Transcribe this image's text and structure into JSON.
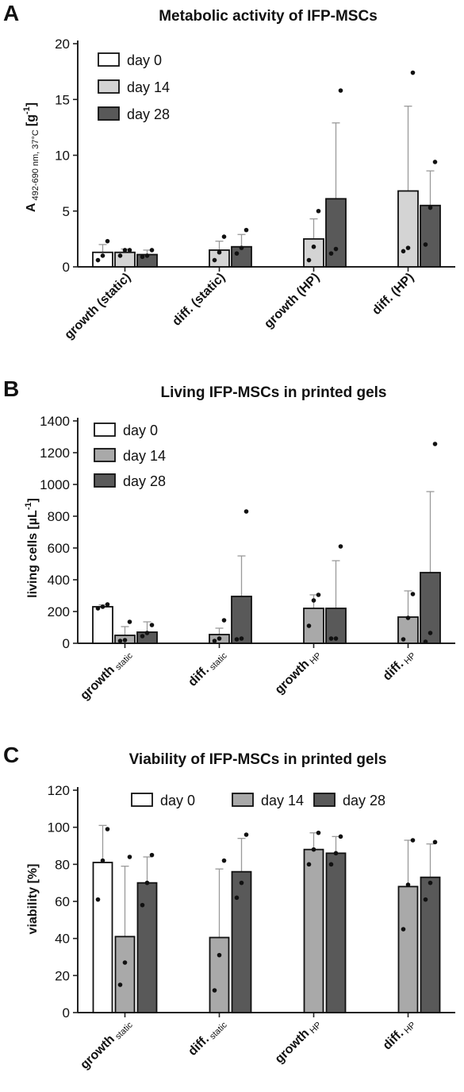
{
  "colors": {
    "day0": "#ffffff",
    "day14_A": "#d4d4d4",
    "day14_BC": "#a9a9a9",
    "day28": "#595959"
  },
  "chart_data": [
    {
      "id": "A",
      "panel_letter": "A",
      "type": "bar",
      "title": "Metabolic activity of IFP-MSCs",
      "ylabel_main": "A",
      "ylabel_sub": "492-690 nm, 37°C",
      "ylabel_unit": "[g",
      "ylabel_sup": "-1",
      "ylabel_end": "]",
      "ylim": [
        0,
        20
      ],
      "yticks": [
        0,
        5,
        10,
        15,
        20
      ],
      "legend_position": "top-left",
      "categories": [
        {
          "main": "growth (static)",
          "sub": ""
        },
        {
          "main": "diff. (static)",
          "sub": ""
        },
        {
          "main": "growth (HP)",
          "sub": ""
        },
        {
          "main": "diff. (HP)",
          "sub": ""
        }
      ],
      "series": [
        {
          "name": "day 0",
          "color_key": "day0",
          "values": [
            1.3,
            null,
            null,
            null
          ],
          "errors": [
            0.7,
            null,
            null,
            null
          ],
          "points": [
            [
              0.6,
              1.0,
              2.3
            ],
            [],
            [],
            []
          ]
        },
        {
          "name": "day 14",
          "color_key": "day14_A",
          "values": [
            1.3,
            1.5,
            2.5,
            6.8
          ],
          "errors": [
            0.3,
            0.8,
            1.8,
            7.6
          ],
          "points": [
            [
              1.0,
              1.5,
              1.5
            ],
            [
              0.6,
              1.3,
              2.7
            ],
            [
              0.6,
              1.8,
              5.0
            ],
            [
              1.4,
              1.7,
              17.4
            ]
          ]
        },
        {
          "name": "day 28",
          "color_key": "day28",
          "values": [
            1.1,
            1.8,
            6.1,
            5.5
          ],
          "errors": [
            0.4,
            1.1,
            6.8,
            3.1
          ],
          "points": [
            [
              0.9,
              1.0,
              1.5
            ],
            [
              1.2,
              1.7,
              3.3
            ],
            [
              1.2,
              1.6,
              15.8
            ],
            [
              2.0,
              5.3,
              9.4
            ]
          ]
        }
      ]
    },
    {
      "id": "B",
      "panel_letter": "B",
      "type": "bar",
      "title": "Living IFP-MSCs in printed gels",
      "ylabel_main": "living cells [µL",
      "ylabel_sub": "",
      "ylabel_unit": "",
      "ylabel_sup": "-1",
      "ylabel_end": "]",
      "ylim": [
        0,
        1400
      ],
      "yticks": [
        0,
        200,
        400,
        600,
        800,
        1000,
        1200,
        1400
      ],
      "legend_position": "top-left",
      "categories": [
        {
          "main": "growth",
          "sub": "static"
        },
        {
          "main": "diff.",
          "sub": "static"
        },
        {
          "main": "growth",
          "sub": "HP"
        },
        {
          "main": "diff.",
          "sub": "HP"
        }
      ],
      "series": [
        {
          "name": "day 0",
          "color_key": "day0",
          "values": [
            230,
            null,
            null,
            null
          ],
          "errors": [
            12,
            null,
            null,
            null
          ],
          "points": [
            [
              220,
              230,
              245
            ],
            [],
            [],
            []
          ]
        },
        {
          "name": "day 14",
          "color_key": "day14_BC",
          "values": [
            50,
            55,
            220,
            165
          ],
          "errors": [
            55,
            40,
            85,
            165
          ],
          "points": [
            [
              15,
              20,
              135
            ],
            [
              15,
              30,
              145
            ],
            [
              110,
              270,
              305
            ],
            [
              25,
              160,
              310
            ]
          ]
        },
        {
          "name": "day 28",
          "color_key": "day28",
          "values": [
            70,
            295,
            220,
            445
          ],
          "errors": [
            65,
            255,
            300,
            510
          ],
          "points": [
            [
              45,
              65,
              115
            ],
            [
              25,
              30,
              830
            ],
            [
              30,
              30,
              610
            ],
            [
              10,
              65,
              1255
            ]
          ]
        }
      ]
    },
    {
      "id": "C",
      "panel_letter": "C",
      "type": "bar",
      "title": "Viability of IFP-MSCs in printed gels",
      "ylabel_main": "viability [%]",
      "ylabel_sub": "",
      "ylabel_unit": "",
      "ylabel_sup": "",
      "ylabel_end": "",
      "ylim": [
        0,
        120
      ],
      "yticks": [
        0,
        20,
        40,
        60,
        80,
        100,
        120
      ],
      "legend_position": "top",
      "categories": [
        {
          "main": "growth",
          "sub": "static"
        },
        {
          "main": "diff.",
          "sub": "static"
        },
        {
          "main": "growth",
          "sub": "HP"
        },
        {
          "main": "diff.",
          "sub": "HP"
        }
      ],
      "series": [
        {
          "name": "day 0",
          "color_key": "day0",
          "values": [
            81,
            null,
            null,
            null
          ],
          "errors": [
            20,
            null,
            null,
            null
          ],
          "points": [
            [
              61,
              82,
              99
            ],
            [],
            [],
            []
          ]
        },
        {
          "name": "day 14",
          "color_key": "day14_BC",
          "values": [
            41,
            40.5,
            88,
            68
          ],
          "errors": [
            38,
            37,
            9,
            25
          ],
          "points": [
            [
              15,
              27,
              84
            ],
            [
              12,
              31,
              82
            ],
            [
              80,
              88,
              97
            ],
            [
              45,
              69,
              93
            ]
          ]
        },
        {
          "name": "day 28",
          "color_key": "day28",
          "values": [
            70,
            76,
            86,
            73
          ],
          "errors": [
            14,
            18,
            9,
            18
          ],
          "points": [
            [
              58,
              70,
              85
            ],
            [
              62,
              70,
              96
            ],
            [
              80,
              86,
              95
            ],
            [
              61,
              70,
              92
            ]
          ]
        }
      ]
    }
  ]
}
